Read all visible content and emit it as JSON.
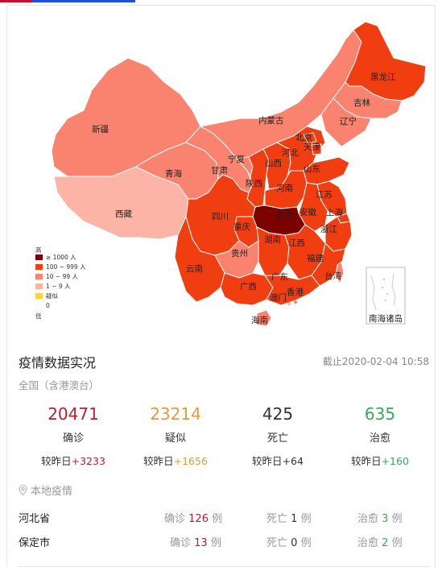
{
  "colors": {
    "level_1000_plus": "#7d0000",
    "level_100_999": "#f13e10",
    "level_10_99": "#f9836e",
    "level_1_9": "#fbb4a5",
    "level_suspect": "#fcd33c",
    "confirmed": "#b5202e",
    "suspected": "#e39a3c",
    "death": "#333333",
    "cured": "#3aa55c"
  },
  "map": {
    "provinces": {
      "heilongjiang": "黑龙江",
      "jilin": "吉林",
      "liaoning": "辽宁",
      "neimenggu": "内蒙古",
      "xinjiang": "新疆",
      "beijing": "北京",
      "tianjin": "天津",
      "hebei": "河北",
      "shanxi": "山西",
      "shandong": "山东",
      "ningxia": "宁夏",
      "gansu": "甘肃",
      "qinghai": "青海",
      "shaanxi": "陕西",
      "henan": "河南",
      "jiangsu": "江苏",
      "xizang": "西藏",
      "sichuan": "四川",
      "chongqing": "重庆",
      "hubei": "湖北",
      "anhui": "安徽",
      "shanghai": "上海",
      "zhejiang": "浙江",
      "hunan": "湖南",
      "jiangxi": "江西",
      "guizhou": "贵州",
      "yunnan": "云南",
      "fujian": "福建",
      "taiwan": "台湾",
      "guangxi": "广西",
      "guangdong": "广东",
      "aomen": "澳门",
      "xianggang": "香港",
      "hainan": "海南"
    },
    "south_sea_label": "南海诸岛",
    "legend": {
      "high": "高",
      "low": "低",
      "items": [
        "≥ 1000 人",
        "100 ~ 999 人",
        "10 ~ 99 人",
        "1 ~ 9 人",
        "疑似",
        "0"
      ]
    }
  },
  "stats": {
    "title": "疫情数据实况",
    "timestamp": "截止2020-02-04 10:58",
    "scope": "全国（含港澳台）",
    "delta_prefix": "较昨日",
    "items": [
      {
        "value": "20471",
        "label": "确诊",
        "delta": "+3233"
      },
      {
        "value": "23214",
        "label": "疑似",
        "delta": "+1656"
      },
      {
        "value": "425",
        "label": "死亡",
        "delta": "+64"
      },
      {
        "value": "635",
        "label": "治愈",
        "delta": "+160"
      }
    ]
  },
  "local": {
    "title": "本地疫情",
    "rows": [
      {
        "name": "河北省",
        "confirmed_label": "确诊",
        "confirmed": "126",
        "death_label": "死亡",
        "death": "1",
        "cured_label": "治愈",
        "cured": "3",
        "unit": "例"
      },
      {
        "name": "保定市",
        "confirmed_label": "确诊",
        "confirmed": "13",
        "death_label": "死亡",
        "death": "0",
        "cured_label": "治愈",
        "cured": "2",
        "unit": "例"
      }
    ]
  }
}
